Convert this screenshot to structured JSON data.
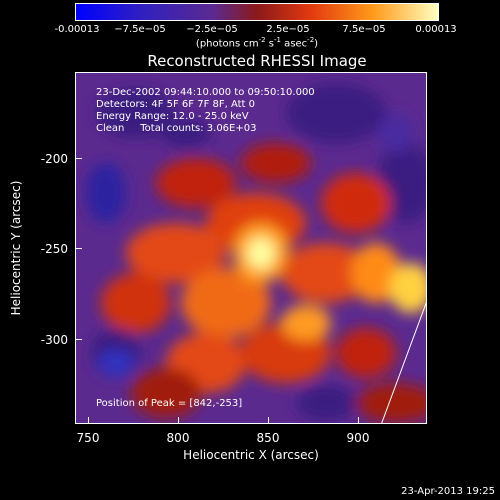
{
  "colorbar": {
    "ticks": [
      "-0.00013",
      "−7.5e−05",
      "−2.5e−05",
      "2.5e−05",
      "7.5e−05",
      "0.00013"
    ],
    "unit_prefix": "(photons cm",
    "unit_exp1": "-2",
    "unit_mid": " s",
    "unit_exp2": "-1",
    "unit_mid2": " asec",
    "unit_exp3": "-2",
    "unit_suffix": ")"
  },
  "title": "Reconstructed RHESSI Image",
  "info": {
    "line1": "23-Dec-2002 09:44:10.000 to 09:50:10.000",
    "line2": "Detectors: 4F 5F 6F 7F 8F, Att 0",
    "line3": "Energy Range: 12.0 - 25.0 keV",
    "line4": "Clean     Total counts: 3.06E+03",
    "peak": "Position of Peak = [842,-253]"
  },
  "axes": {
    "xlabel": "Heliocentric X (arcsec)",
    "ylabel": "Heliocentric Y (arcsec)",
    "xticks": [
      "750",
      "800",
      "850",
      "900"
    ],
    "yticks": [
      "-200",
      "-250",
      "-300"
    ]
  },
  "timestamp": "23-Apr-2013 19:25",
  "colors": {
    "colormap": [
      "#0000ff",
      "#5b2a8f",
      "#8b1a1a",
      "#e23a10",
      "#ff9a1a",
      "#ffffc0"
    ]
  }
}
